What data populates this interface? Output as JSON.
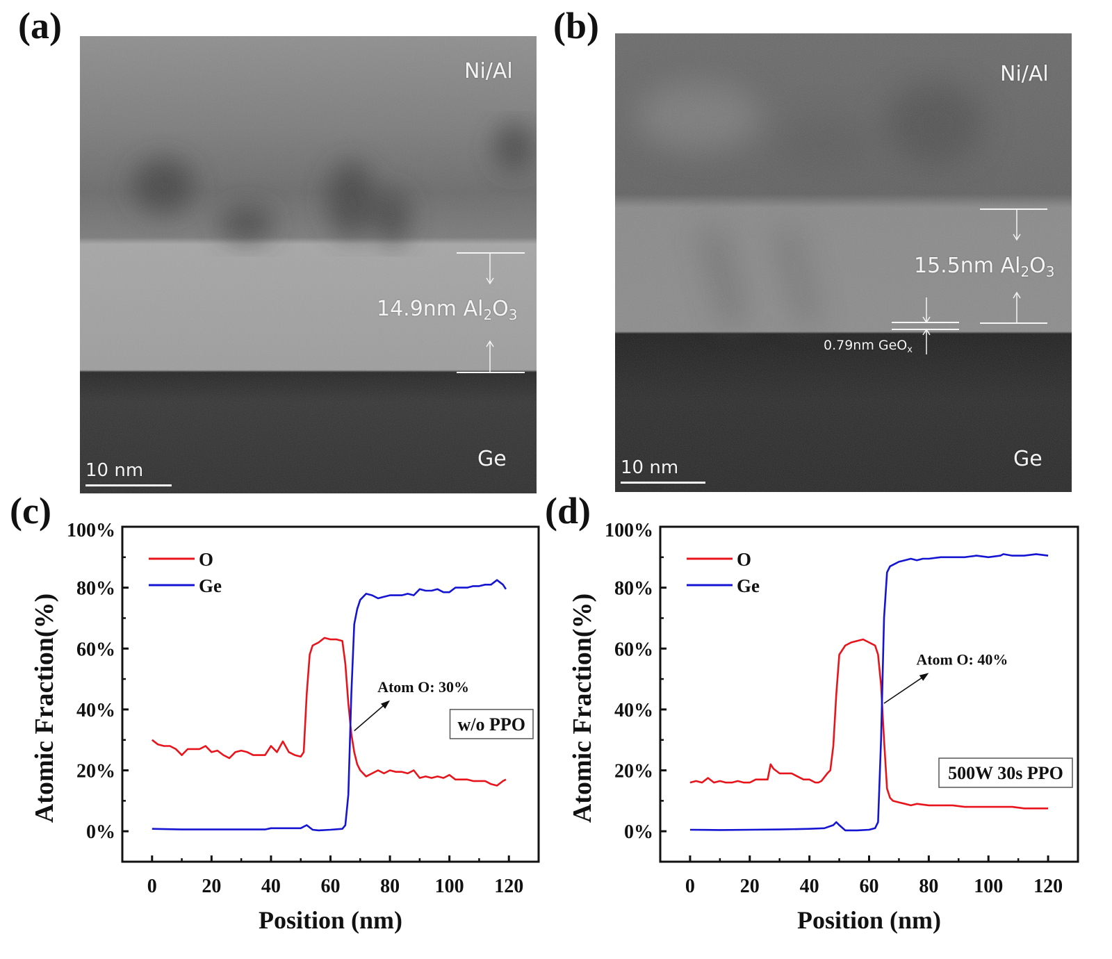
{
  "panels": {
    "a": {
      "label": "(a)",
      "layers": {
        "top": "Ni/Al",
        "bottom": "Ge"
      },
      "thickness_label": "14.9nm Al",
      "thickness_sub1": "2",
      "thickness_mid": "O",
      "thickness_sub2": "3",
      "scale_bar": "10 nm"
    },
    "b": {
      "label": "(b)",
      "layers": {
        "top": "Ni/Al",
        "bottom": "Ge"
      },
      "thickness_label": "15.5nm Al",
      "thickness_sub1": "2",
      "thickness_mid": "O",
      "thickness_sub2": "3",
      "interlayer_label": "0.79nm GeO",
      "interlayer_sub": "x",
      "scale_bar": "10 nm"
    },
    "c": {
      "label": "(c)"
    },
    "d": {
      "label": "(d)"
    }
  },
  "colors": {
    "O": "#e8141c",
    "Ge": "#1414d2",
    "axis": "#111111"
  },
  "chart_data": [
    {
      "panel": "c",
      "type": "line",
      "title": "",
      "xlabel": "Position (nm)",
      "ylabel": "Atomic Fraction(%)",
      "xlim": [
        -10,
        130
      ],
      "ylim": [
        -10,
        100
      ],
      "xticks": [
        0,
        20,
        40,
        60,
        80,
        100,
        120
      ],
      "xtick_labels": [
        "0",
        "20",
        "40",
        "60",
        "80",
        "100",
        "120"
      ],
      "yticks": [
        0,
        20,
        40,
        60,
        80,
        100
      ],
      "ytick_labels": [
        "0%",
        "20%",
        "40%",
        "60%",
        "80%",
        "100%"
      ],
      "grid": false,
      "legend_position": "upper left",
      "annotation": {
        "text": "Atom O: 30%",
        "x": 68,
        "y": 33,
        "text_x": 80,
        "text_y": 43
      },
      "box_label": "w/o PPO",
      "series": [
        {
          "name": "O",
          "x": [
            0,
            2,
            4,
            6,
            8,
            10,
            12,
            14,
            16,
            18,
            20,
            22,
            24,
            26,
            28,
            30,
            32,
            34,
            36,
            38,
            40,
            42,
            44,
            46,
            48,
            50,
            51,
            52,
            53,
            54,
            56,
            58,
            60,
            62,
            64,
            65,
            66,
            67,
            68,
            69,
            70,
            72,
            74,
            76,
            78,
            80,
            82,
            84,
            86,
            88,
            90,
            92,
            94,
            96,
            98,
            100,
            102,
            104,
            106,
            108,
            110,
            112,
            114,
            116,
            118,
            119
          ],
          "y": [
            30,
            28.5,
            28,
            28,
            27,
            25,
            27,
            27,
            27,
            28,
            26,
            26.5,
            25,
            24,
            26,
            26.5,
            26,
            25,
            25,
            25,
            28,
            26,
            29.5,
            26,
            25,
            24.5,
            26,
            45,
            58,
            61,
            62,
            63.5,
            63,
            63,
            62.5,
            55,
            42,
            32,
            26,
            22,
            20,
            18,
            19,
            20,
            19,
            20,
            19.5,
            19.5,
            19,
            20,
            17.5,
            18,
            17.5,
            18,
            17.5,
            18.5,
            17,
            17,
            17,
            16.5,
            16.5,
            16.5,
            15.5,
            15,
            16.5,
            17
          ]
        },
        {
          "name": "Ge",
          "x": [
            0,
            10,
            20,
            30,
            38,
            40,
            45,
            50,
            52,
            54,
            56,
            60,
            64,
            65,
            66,
            67,
            68,
            69,
            70,
            72,
            74,
            76,
            78,
            80,
            82,
            84,
            86,
            88,
            90,
            92,
            94,
            96,
            98,
            100,
            102,
            104,
            106,
            108,
            110,
            112,
            114,
            116,
            118,
            119
          ],
          "y": [
            0.8,
            0.6,
            0.6,
            0.6,
            0.6,
            1,
            1,
            1,
            2,
            0.5,
            0.3,
            0.5,
            0.8,
            2,
            12,
            45,
            68,
            73,
            76,
            78,
            77.5,
            76.5,
            77,
            77.5,
            77.5,
            77.5,
            78,
            77.5,
            79.5,
            79,
            79,
            79.5,
            78.5,
            78.5,
            80,
            80,
            80,
            80.5,
            80.5,
            81,
            81,
            82.5,
            81,
            79.5
          ]
        }
      ]
    },
    {
      "panel": "d",
      "type": "line",
      "title": "",
      "xlabel": "Position (nm)",
      "ylabel": "Atomic Fraction(%)",
      "xlim": [
        -10,
        130
      ],
      "ylim": [
        -10,
        100
      ],
      "xticks": [
        0,
        20,
        40,
        60,
        80,
        100,
        120
      ],
      "xtick_labels": [
        "0",
        "20",
        "40",
        "60",
        "80",
        "100",
        "120"
      ],
      "yticks": [
        0,
        20,
        40,
        60,
        80,
        100
      ],
      "ytick_labels": [
        "0%",
        "20%",
        "40%",
        "60%",
        "80%",
        "100%"
      ],
      "grid": false,
      "legend_position": "upper left",
      "annotation": {
        "text": "Atom O: 40%",
        "x": 65,
        "y": 42,
        "text_x": 80,
        "text_y": 52
      },
      "box_label": "500W 30s PPO",
      "series": [
        {
          "name": "O",
          "x": [
            0,
            2,
            4,
            6,
            8,
            10,
            12,
            14,
            16,
            18,
            20,
            22,
            24,
            26,
            27,
            28,
            30,
            32,
            34,
            36,
            38,
            40,
            42,
            43,
            44,
            46,
            47,
            48,
            49,
            50,
            52,
            54,
            56,
            58,
            60,
            62,
            63,
            64,
            65,
            66,
            67,
            68,
            70,
            72,
            74,
            76,
            80,
            84,
            88,
            92,
            96,
            100,
            104,
            108,
            112,
            116,
            120
          ],
          "y": [
            16,
            16.5,
            16,
            17.5,
            16,
            16.5,
            16,
            16,
            16.5,
            16,
            16,
            17,
            17,
            17,
            22,
            20.5,
            19,
            19,
            19,
            18,
            17,
            17,
            16,
            16,
            16.5,
            19,
            20,
            28,
            45,
            58,
            61,
            62,
            62.5,
            63,
            62,
            61,
            58,
            48,
            30,
            14,
            11,
            10,
            9.5,
            9,
            8.5,
            9,
            8.5,
            8.5,
            8.5,
            8,
            8,
            8,
            8,
            8,
            7.5,
            7.5,
            7.5
          ]
        },
        {
          "name": "Ge",
          "x": [
            0,
            10,
            20,
            30,
            40,
            45,
            48,
            49,
            50,
            52,
            56,
            60,
            62,
            63,
            64,
            65,
            66,
            67,
            68,
            70,
            72,
            74,
            76,
            78,
            80,
            84,
            88,
            92,
            96,
            100,
            104,
            105,
            108,
            112,
            116,
            120
          ],
          "y": [
            0.5,
            0.4,
            0.5,
            0.6,
            0.8,
            1,
            2,
            3,
            2,
            0.3,
            0.3,
            0.5,
            1,
            3,
            30,
            70,
            85,
            87,
            87.5,
            88.5,
            89,
            89.5,
            89,
            89.5,
            89.5,
            90,
            90,
            90,
            90.5,
            90,
            90.5,
            91,
            90.5,
            90.5,
            91,
            90.5
          ]
        }
      ]
    }
  ]
}
